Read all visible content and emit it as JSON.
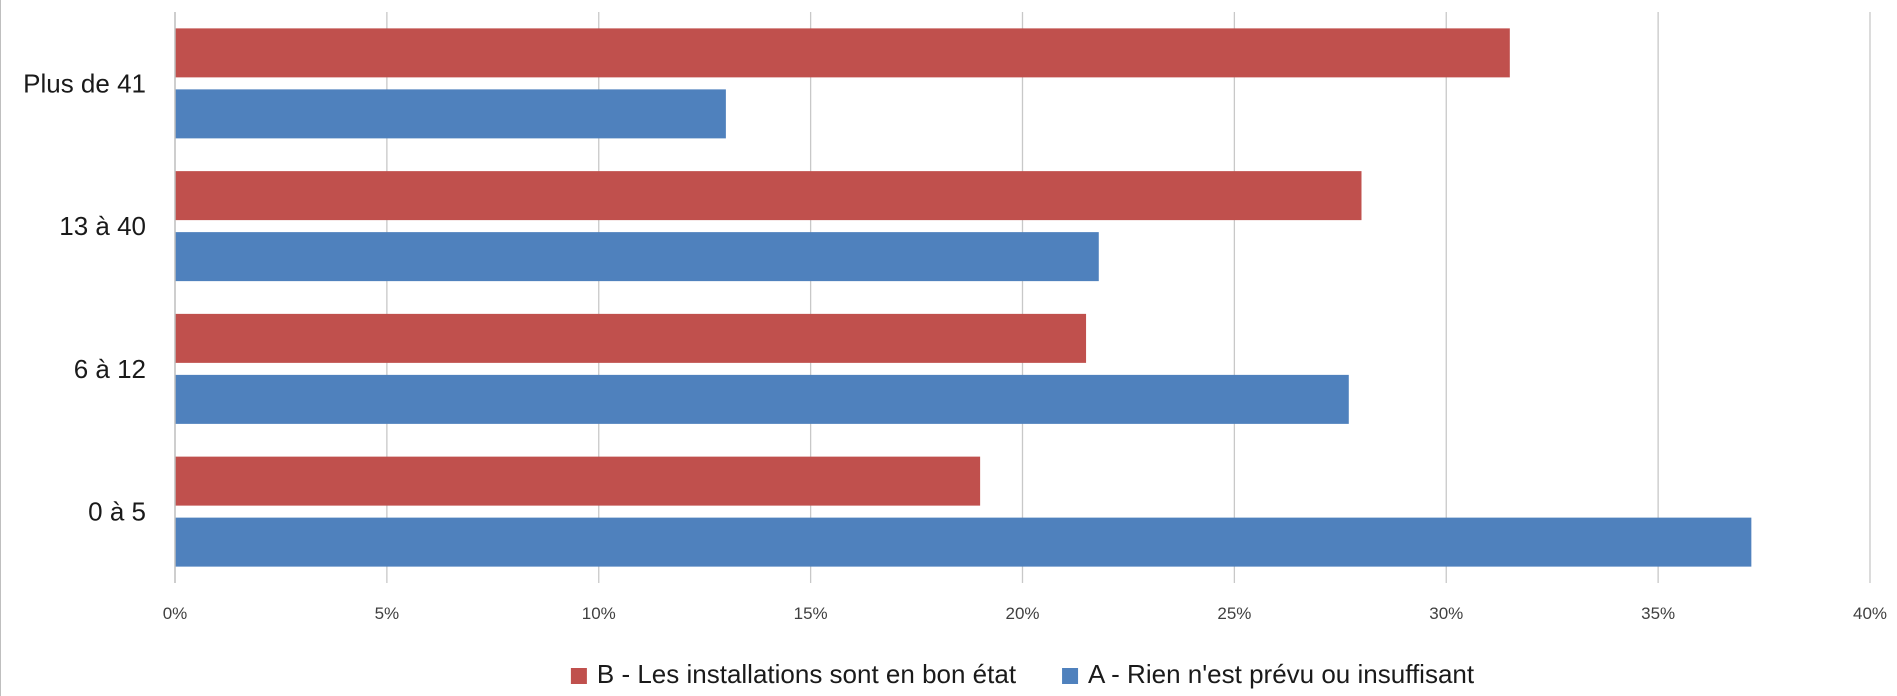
{
  "chart_data": {
    "type": "bar",
    "orientation": "horizontal",
    "categories": [
      "0 à 5",
      "6 à 12",
      "13 à 40",
      "Plus de 41"
    ],
    "series": [
      {
        "name": "B - Les installations sont en bon état",
        "color": "#c0504d",
        "values": [
          19.0,
          21.5,
          28.0,
          31.5
        ]
      },
      {
        "name": "A - Rien n'est prévu ou insuffisant",
        "color": "#4f81bd",
        "values": [
          37.2,
          27.7,
          21.8,
          13.0
        ]
      }
    ],
    "x_ticks": [
      "0%",
      "5%",
      "10%",
      "15%",
      "20%",
      "25%",
      "30%",
      "35%",
      "40%"
    ],
    "xlim": [
      0,
      40
    ],
    "title": "",
    "xlabel": "",
    "ylabel": "",
    "grid": "vertical",
    "legend_position": "bottom"
  }
}
